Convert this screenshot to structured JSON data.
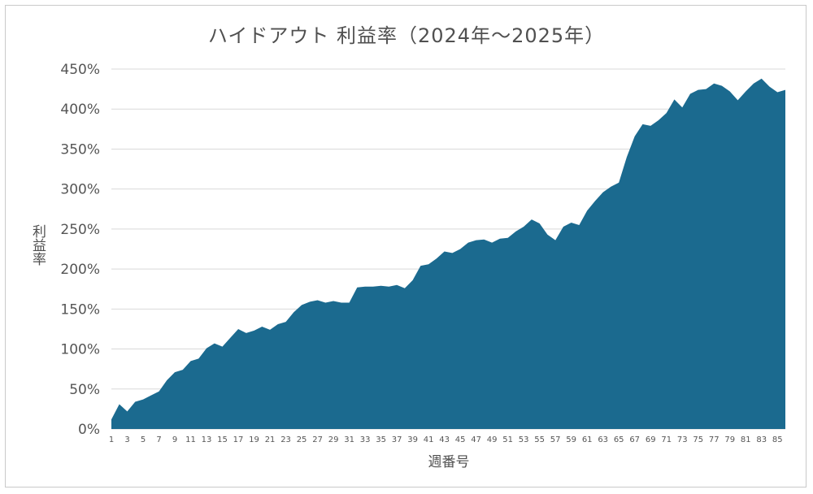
{
  "chart_data": {
    "type": "area",
    "title": "ハイドアウト 利益率（2024年～2025年）",
    "xlabel": "週番号",
    "ylabel": "利益率",
    "y_unit": "%",
    "ylim": [
      0,
      450
    ],
    "y_ticks": [
      0,
      50,
      100,
      150,
      200,
      250,
      300,
      350,
      400,
      450
    ],
    "x_tick_step": 2,
    "grid": true,
    "legend": "none",
    "fill_color": "#1b6a8f",
    "series": [
      {
        "x": [
          1,
          2,
          3,
          4,
          5,
          6,
          7,
          8,
          9,
          10,
          11,
          12,
          13,
          14,
          15,
          16,
          17,
          18,
          19,
          20,
          21,
          22,
          23,
          24,
          25,
          26,
          27,
          28,
          29,
          30,
          31,
          32,
          33,
          34,
          35,
          36,
          37,
          38,
          39,
          40,
          41,
          42,
          43,
          44,
          45,
          46,
          47,
          48,
          49,
          50,
          51,
          52,
          53,
          54,
          55,
          56,
          57,
          58,
          59,
          60,
          61,
          62,
          63,
          64,
          65,
          66,
          67,
          68,
          69,
          70,
          71,
          72,
          73,
          74,
          75,
          76,
          77,
          78,
          79,
          80,
          81,
          82,
          83,
          84,
          85,
          86
        ],
        "values": [
          12,
          31,
          22,
          34,
          37,
          42,
          47,
          61,
          71,
          74,
          85,
          88,
          101,
          107,
          103,
          114,
          125,
          120,
          123,
          128,
          124,
          131,
          134,
          146,
          155,
          159,
          161,
          158,
          160,
          158,
          158,
          177,
          178,
          178,
          179,
          178,
          180,
          176,
          186,
          204,
          206,
          213,
          222,
          220,
          225,
          233,
          236,
          237,
          233,
          238,
          239,
          247,
          253,
          262,
          257,
          243,
          236,
          253,
          258,
          255,
          273,
          285,
          296,
          303,
          308,
          340,
          366,
          381,
          379,
          386,
          395,
          412,
          402,
          419,
          424,
          425,
          432,
          429,
          422,
          411,
          422,
          432,
          438,
          428,
          421,
          424
        ]
      }
    ]
  }
}
